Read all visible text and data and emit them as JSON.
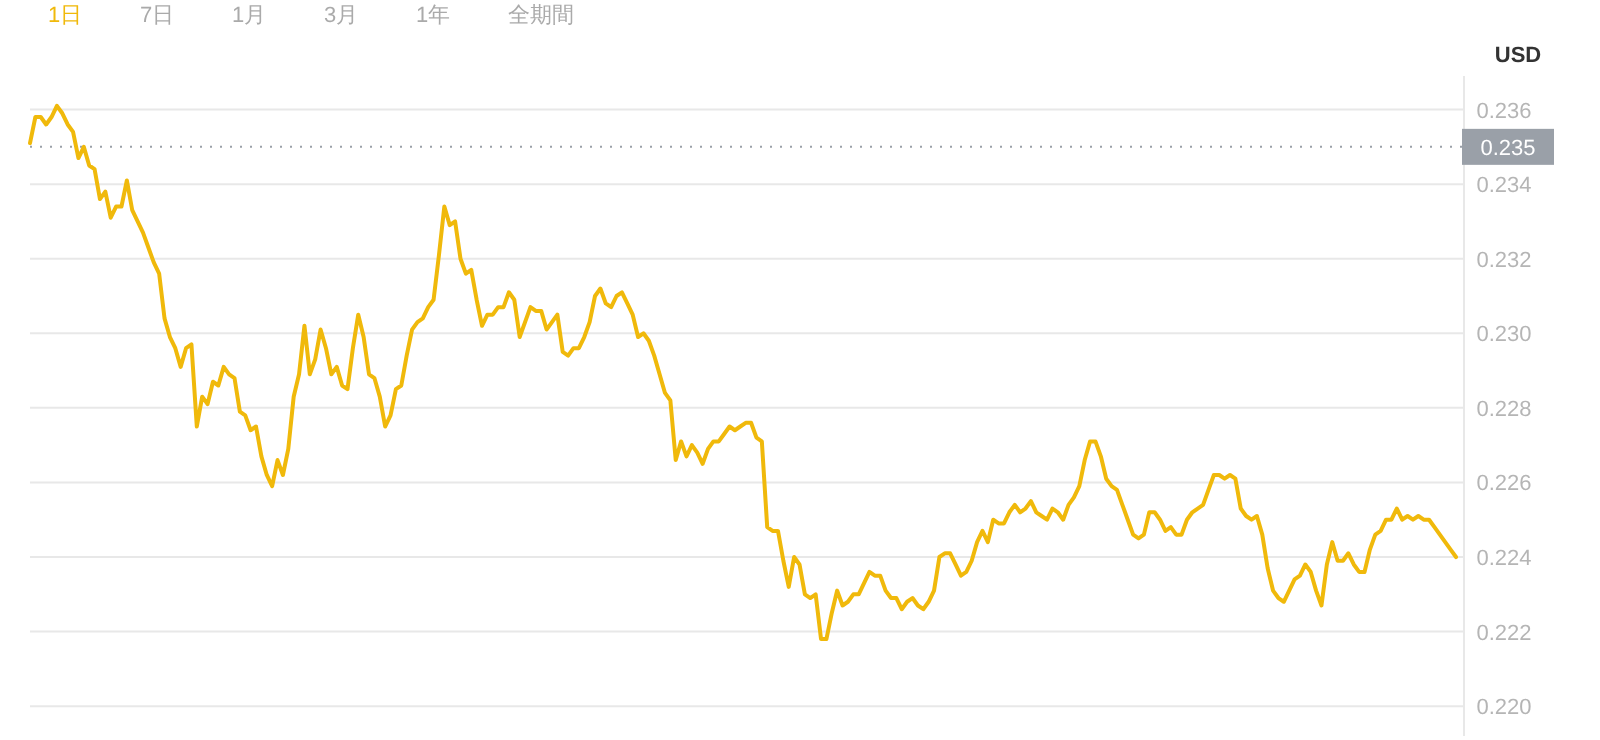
{
  "chart_data": {
    "type": "line",
    "ylabel": "USD",
    "annotations": [
      "1日",
      "7日",
      "1月",
      "3月",
      "1年",
      "全期間"
    ],
    "categories": [
      null,
      null,
      null,
      null,
      null,
      null,
      null,
      null,
      null,
      null,
      null,
      null,
      null,
      null,
      null,
      null,
      null,
      null,
      null,
      null,
      null,
      null,
      null,
      null,
      null,
      null,
      null,
      null,
      null,
      null,
      null,
      null,
      null,
      null,
      null,
      null,
      null,
      null,
      null,
      null,
      null,
      null,
      null,
      null,
      null,
      null,
      null,
      null,
      null,
      null,
      null,
      null,
      null,
      null,
      null,
      null,
      null,
      null,
      null,
      null,
      null,
      null,
      null,
      null,
      null,
      null,
      null,
      null,
      null,
      null,
      null,
      null,
      null,
      null,
      null,
      null,
      null,
      null,
      null,
      null,
      null,
      null,
      null,
      null,
      null,
      null,
      null,
      null,
      null,
      null,
      null,
      null,
      null,
      null,
      null,
      null,
      null,
      null,
      null,
      null,
      null,
      null,
      null,
      null,
      null,
      null,
      null,
      null,
      null,
      null,
      null,
      null,
      null,
      null,
      null,
      null,
      null,
      null,
      null,
      null,
      null,
      null,
      null,
      null,
      null,
      null,
      null,
      null,
      null,
      null,
      null,
      null,
      null,
      null,
      null,
      null,
      null,
      null,
      null,
      null,
      null,
      null,
      null,
      null,
      null,
      null,
      null,
      null,
      null,
      null,
      null,
      null,
      null,
      null,
      null,
      null,
      null,
      null,
      null,
      null,
      null,
      null,
      null,
      null,
      null,
      null,
      null,
      null,
      null,
      null,
      null,
      null,
      null,
      null,
      null,
      null,
      null,
      null,
      null,
      null,
      null,
      null,
      null,
      null,
      null,
      null,
      null,
      null,
      null,
      null,
      null,
      null,
      null,
      null,
      null,
      null,
      null,
      null,
      null,
      null,
      null,
      null,
      null,
      null,
      null,
      null,
      null,
      null,
      null,
      null,
      null,
      null,
      null,
      null,
      null,
      null,
      null,
      null,
      null,
      null,
      null,
      null,
      null,
      null,
      null,
      null,
      null,
      null,
      null,
      null,
      null,
      null,
      null,
      null,
      null,
      null,
      null,
      null,
      null,
      null,
      null,
      null,
      null,
      null,
      null,
      null,
      null,
      null,
      null,
      null,
      null,
      null,
      null,
      null,
      null,
      null,
      null,
      null,
      null,
      null,
      null,
      null,
      null,
      null,
      null,
      null
    ],
    "series": [
      {
        "color": "#f0b90b",
        "values": [
          0.2351,
          0.2358,
          0.2358,
          0.2356,
          0.2358,
          0.2361,
          0.2359,
          0.2356,
          0.2354,
          0.2347,
          0.235,
          0.2345,
          0.2344,
          0.2336,
          0.2338,
          0.2331,
          0.2334,
          0.2334,
          0.2341,
          0.2333,
          0.233,
          0.2327,
          0.2323,
          0.2319,
          0.2316,
          0.2304,
          0.2299,
          0.2296,
          0.2291,
          0.2296,
          0.2297,
          0.2275,
          0.2283,
          0.2281,
          0.2287,
          0.2286,
          0.2291,
          0.2289,
          0.2288,
          0.2279,
          0.2278,
          0.2274,
          0.2275,
          0.2267,
          0.2262,
          0.2259,
          0.2266,
          0.2262,
          0.2269,
          0.2283,
          0.2289,
          0.2302,
          0.2289,
          0.2293,
          0.2301,
          0.2296,
          0.2289,
          0.2291,
          0.2286,
          0.2285,
          0.2296,
          0.2305,
          0.2299,
          0.2289,
          0.2288,
          0.2283,
          0.2275,
          0.2278,
          0.2285,
          0.2286,
          0.2294,
          0.2301,
          0.2303,
          0.2304,
          0.2307,
          0.2309,
          0.2321,
          0.2334,
          0.2329,
          0.233,
          0.232,
          0.2316,
          0.2317,
          0.2309,
          0.2302,
          0.2305,
          0.2305,
          0.2307,
          0.2307,
          0.2311,
          0.2309,
          0.2299,
          0.2303,
          0.2307,
          0.2306,
          0.2306,
          0.2301,
          0.2303,
          0.2305,
          0.2295,
          0.2294,
          0.2296,
          0.2296,
          0.2299,
          0.2303,
          0.231,
          0.2312,
          0.2308,
          0.2307,
          0.231,
          0.2311,
          0.2308,
          0.2305,
          0.2299,
          0.23,
          0.2298,
          0.2294,
          0.2289,
          0.2284,
          0.2282,
          0.2266,
          0.2271,
          0.2267,
          0.227,
          0.2268,
          0.2265,
          0.2269,
          0.2271,
          0.2271,
          0.2273,
          0.2275,
          0.2274,
          0.2275,
          0.2276,
          0.2276,
          0.2272,
          0.2271,
          0.2248,
          0.2247,
          0.2247,
          0.2239,
          0.2232,
          0.224,
          0.2238,
          0.223,
          0.2229,
          0.223,
          0.2218,
          0.2218,
          0.2225,
          0.2231,
          0.2227,
          0.2228,
          0.223,
          0.223,
          0.2233,
          0.2236,
          0.2235,
          0.2235,
          0.2231,
          0.2229,
          0.2229,
          0.2226,
          0.2228,
          0.2229,
          0.2227,
          0.2226,
          0.2228,
          0.2231,
          0.224,
          0.2241,
          0.2241,
          0.2238,
          0.2235,
          0.2236,
          0.2239,
          0.2244,
          0.2247,
          0.2244,
          0.225,
          0.2249,
          0.2249,
          0.2252,
          0.2254,
          0.2252,
          0.2253,
          0.2255,
          0.2252,
          0.2251,
          0.225,
          0.2253,
          0.2252,
          0.225,
          0.2254,
          0.2256,
          0.2259,
          0.2266,
          0.2271,
          0.2271,
          0.2267,
          0.2261,
          0.2259,
          0.2258,
          0.2254,
          0.225,
          0.2246,
          0.2245,
          0.2246,
          0.2252,
          0.2252,
          0.225,
          0.2247,
          0.2248,
          0.2246,
          0.2246,
          0.225,
          0.2252,
          0.2253,
          0.2254,
          0.2258,
          0.2262,
          0.2262,
          0.2261,
          0.2262,
          0.2261,
          0.2253,
          0.2251,
          0.225,
          0.2251,
          0.2246,
          0.2237,
          0.2231,
          0.2229,
          0.2228,
          0.2231,
          0.2234,
          0.2235,
          0.2238,
          0.2236,
          0.2231,
          0.2227,
          0.2238,
          0.2244,
          0.2239,
          0.2239,
          0.2241,
          0.2238,
          0.2236,
          0.2236,
          0.2242,
          0.2246,
          0.2247,
          0.225,
          0.225,
          0.2253,
          0.225,
          0.2251,
          0.225,
          0.2251,
          0.225,
          0.225,
          0.2248,
          0.2246,
          0.2244,
          0.2242,
          0.224
        ]
      }
    ],
    "ylim": [
      0.2192,
      0.2369
    ],
    "yticks": [
      {
        "value": 0.22,
        "label": "0.220"
      },
      0.222,
      0.224,
      0.226,
      0.228,
      {
        "value": 0.23,
        "label": "0.230"
      },
      0.232,
      0.234,
      0.236
    ],
    "ref_lines": [
      {
        "axis": "y",
        "value": 0.235,
        "label": "0.235",
        "color": "#9aa0a8",
        "line_style": "dotted"
      }
    ],
    "grid": "y",
    "marker": "none",
    "line_style": "solid"
  }
}
